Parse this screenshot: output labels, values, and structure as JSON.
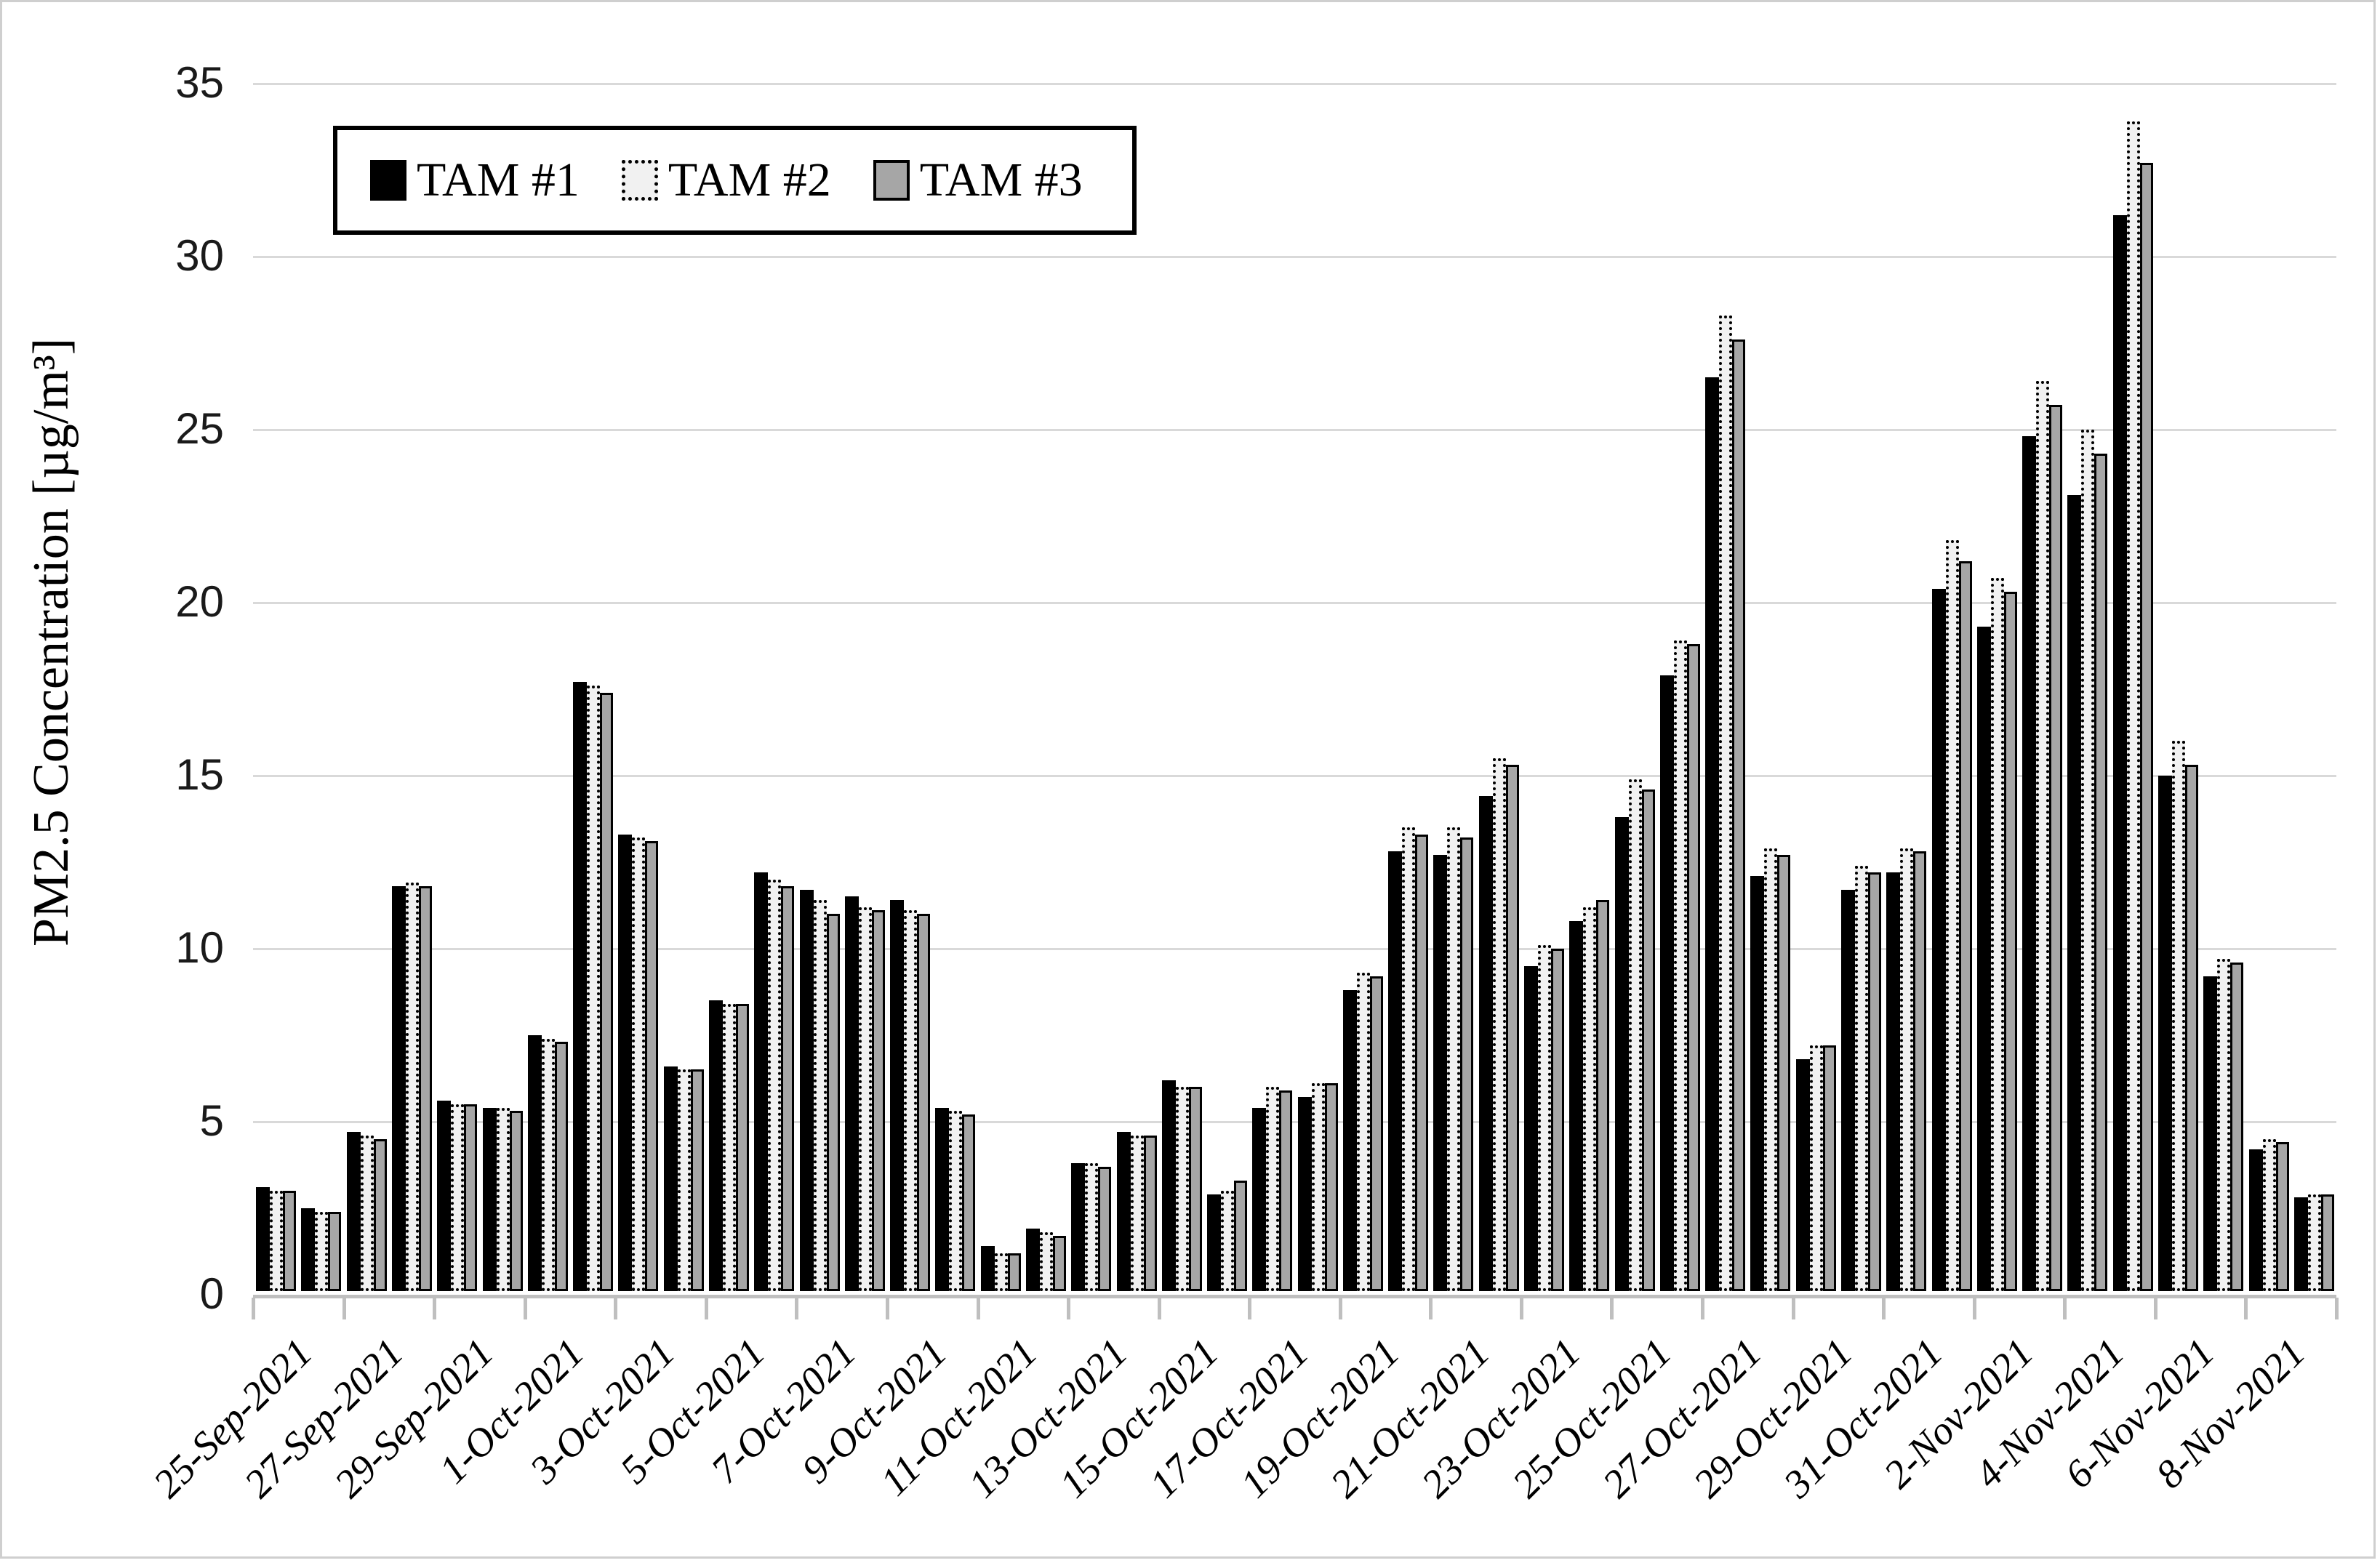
{
  "figure": {
    "background": "#ffffff",
    "outer_border_color": "#cfcfcf",
    "gridline_color": "#d9d9d9",
    "axis_line_color": "#bfbfbf"
  },
  "chart_data": {
    "type": "bar",
    "title": "",
    "xlabel": "",
    "ylabel": "PM2.5 Concentration [µg/m³]",
    "ylim": [
      0,
      35
    ],
    "ytick_step": 5,
    "ytick_labels": [
      "0",
      "5",
      "10",
      "15",
      "20",
      "25",
      "30",
      "35"
    ],
    "grid": "horizontal",
    "legend_position": "top-left-inside",
    "x_label_every": 2,
    "categories": [
      "25-Sep-2021",
      "26-Sep-2021",
      "27-Sep-2021",
      "28-Sep-2021",
      "29-Sep-2021",
      "30-Sep-2021",
      "1-Oct-2021",
      "2-Oct-2021",
      "3-Oct-2021",
      "4-Oct-2021",
      "5-Oct-2021",
      "6-Oct-2021",
      "7-Oct-2021",
      "8-Oct-2021",
      "9-Oct-2021",
      "10-Oct-2021",
      "11-Oct-2021",
      "12-Oct-2021",
      "13-Oct-2021",
      "14-Oct-2021",
      "15-Oct-2021",
      "16-Oct-2021",
      "17-Oct-2021",
      "18-Oct-2021",
      "19-Oct-2021",
      "20-Oct-2021",
      "21-Oct-2021",
      "22-Oct-2021",
      "23-Oct-2021",
      "24-Oct-2021",
      "25-Oct-2021",
      "26-Oct-2021",
      "27-Oct-2021",
      "28-Oct-2021",
      "29-Oct-2021",
      "30-Oct-2021",
      "31-Oct-2021",
      "1-Nov-2021",
      "2-Nov-2021",
      "3-Nov-2021",
      "4-Nov-2021",
      "5-Nov-2021",
      "6-Nov-2021",
      "7-Nov-2021",
      "8-Nov-2021",
      "9-Nov-2021"
    ],
    "shown_x_tick_labels": [
      "25-Sep-2021",
      "27-Sep-2021",
      "29-Sep-2021",
      "1-Oct-2021",
      "3-Oct-2021",
      "5-Oct-2021",
      "7-Oct-2021",
      "9-Oct-2021",
      "11-Oct-2021",
      "13-Oct-2021",
      "15-Oct-2021",
      "17-Oct-2021",
      "19-Oct-2021",
      "21-Oct-2021",
      "23-Oct-2021",
      "25-Oct-2021",
      "27-Oct-2021",
      "29-Oct-2021",
      "31-Oct-2021",
      "2-Nov-2021",
      "4-Nov-2021",
      "6-Nov-2021",
      "8-Nov-2021"
    ],
    "series": [
      {
        "name": "TAM #1",
        "style": "solid-black",
        "color": "#000000",
        "values": [
          3.0,
          2.4,
          4.6,
          11.7,
          5.5,
          5.3,
          7.4,
          17.6,
          13.2,
          6.5,
          8.4,
          12.1,
          11.6,
          11.4,
          11.3,
          5.3,
          1.3,
          1.8,
          3.7,
          4.6,
          6.1,
          2.8,
          5.3,
          5.6,
          8.7,
          12.7,
          12.6,
          14.3,
          9.4,
          10.7,
          13.7,
          17.8,
          26.4,
          12.0,
          6.7,
          11.6,
          12.1,
          20.3,
          19.2,
          24.7,
          23.0,
          31.1,
          14.9,
          9.1,
          4.1,
          2.7
        ]
      },
      {
        "name": "TAM #2",
        "style": "dotted-outline-white",
        "color": "#f1f1f1",
        "border_color": "#000000",
        "values": [
          2.9,
          2.3,
          4.5,
          11.8,
          5.4,
          5.3,
          7.3,
          17.5,
          13.1,
          6.4,
          8.3,
          11.9,
          11.3,
          11.1,
          11.0,
          5.2,
          1.1,
          1.7,
          3.7,
          4.5,
          5.9,
          2.9,
          5.9,
          6.0,
          9.2,
          13.4,
          13.4,
          15.4,
          10.0,
          11.1,
          14.8,
          18.8,
          28.2,
          12.8,
          7.1,
          12.3,
          12.8,
          21.7,
          20.6,
          26.3,
          24.9,
          33.8,
          15.9,
          9.6,
          4.4,
          2.8
        ]
      },
      {
        "name": "TAM #3",
        "style": "solid-gray",
        "color": "#a6a6a6",
        "border_color": "#000000",
        "values": [
          2.9,
          2.3,
          4.4,
          11.7,
          5.4,
          5.2,
          7.2,
          17.3,
          13.0,
          6.4,
          8.3,
          11.7,
          10.9,
          11.0,
          10.9,
          5.1,
          1.1,
          1.6,
          3.6,
          4.5,
          5.9,
          3.2,
          5.8,
          6.0,
          9.1,
          13.2,
          13.1,
          15.2,
          9.9,
          11.3,
          14.5,
          18.7,
          27.5,
          12.6,
          7.1,
          12.1,
          12.7,
          21.1,
          20.2,
          25.6,
          24.2,
          32.6,
          15.2,
          9.5,
          4.3,
          2.8
        ]
      }
    ]
  }
}
